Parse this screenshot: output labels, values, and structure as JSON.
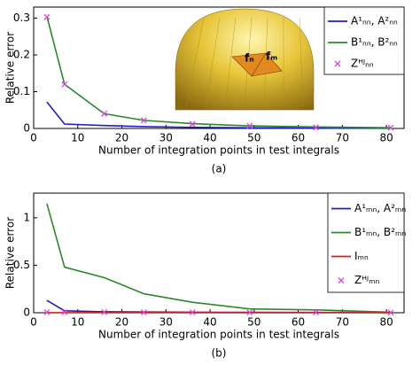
{
  "chart_data": [
    {
      "type": "line",
      "caption": "(a)",
      "ylabel": "Relative error",
      "xlabel": "Number of integration points in test integrals",
      "x": [
        3,
        7,
        16,
        25,
        36,
        49,
        64,
        81
      ],
      "xlim": [
        0,
        84
      ],
      "xticks": [
        0,
        10,
        20,
        30,
        40,
        50,
        60,
        70,
        80
      ],
      "ylim": [
        0,
        0.33
      ],
      "yticks": [
        0,
        0.1,
        0.2,
        0.3
      ],
      "legend": "upper right",
      "series": [
        {
          "name": "A¹ₙₙ, A²ₙₙ",
          "color": "#1f1fc8",
          "style": "line",
          "values": [
            0.072,
            0.012,
            0.008,
            0.005,
            0.003,
            0.002,
            0.001,
            0.001
          ]
        },
        {
          "name": "B¹ₙₙ, B²ₙₙ",
          "color": "#2a8a2a",
          "style": "line",
          "values": [
            0.305,
            0.12,
            0.04,
            0.022,
            0.013,
            0.007,
            0.004,
            0.002
          ]
        },
        {
          "name": "Zᴴᴶₙₙ",
          "color": "#e040e0",
          "style": "markers",
          "values": [
            0.303,
            0.12,
            0.04,
            0.022,
            0.012,
            0.007,
            0.003,
            0.002
          ]
        }
      ],
      "inset": {
        "labels": [
          "fₙ",
          "fₘ"
        ]
      }
    },
    {
      "type": "line",
      "caption": "(b)",
      "ylabel": "Relative error",
      "xlabel": "Number of integration points in test integrals",
      "x": [
        3,
        7,
        16,
        25,
        36,
        49,
        64,
        81
      ],
      "xlim": [
        0,
        84
      ],
      "xticks": [
        0,
        10,
        20,
        30,
        40,
        50,
        60,
        70,
        80
      ],
      "ylim": [
        0,
        1.26
      ],
      "yticks": [
        0,
        0.5,
        1
      ],
      "legend": "upper right",
      "series": [
        {
          "name": "A¹ₘₙ, A²ₘₙ",
          "color": "#1f1fc8",
          "style": "line",
          "values": [
            0.13,
            0.02,
            0.01,
            0.008,
            0.005,
            0.004,
            0.003,
            0.002
          ]
        },
        {
          "name": "B¹ₘₙ, B²ₘₙ",
          "color": "#2a8a2a",
          "style": "line",
          "values": [
            1.15,
            0.48,
            0.37,
            0.2,
            0.11,
            0.04,
            0.03,
            0.005
          ]
        },
        {
          "name": "Iₘₙ",
          "color": "#d02020",
          "style": "line",
          "values": [
            0.001,
            0.001,
            0.001,
            0.001,
            0.001,
            0.001,
            0.001,
            0.001
          ]
        },
        {
          "name": "Zᴴᴶₘₙ",
          "color": "#e040e0",
          "style": "markers",
          "values": [
            0.005,
            0.005,
            0.005,
            0.004,
            0.004,
            0.003,
            0.003,
            0.002
          ]
        }
      ]
    }
  ]
}
